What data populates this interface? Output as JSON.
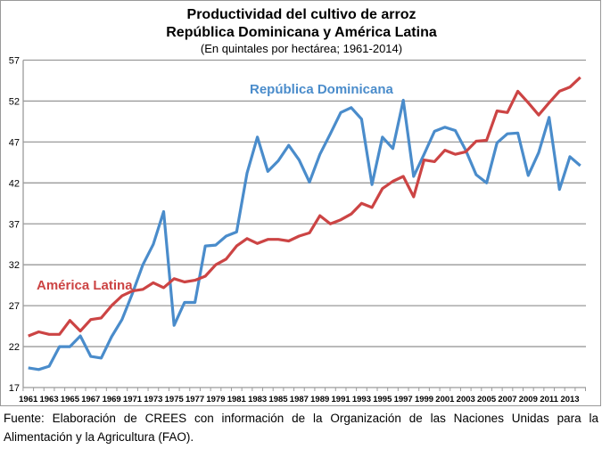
{
  "chart_data": {
    "type": "line",
    "title": "Productividad del cultivo de arroz",
    "title_line2": "República Dominicana y América Latina",
    "subtitle": "(En quintales por hectárea; 1961-2014)",
    "ylim": [
      17,
      57
    ],
    "yticks": [
      17,
      22,
      27,
      32,
      37,
      42,
      47,
      52,
      57
    ],
    "grid": true,
    "x": [
      1961,
      1962,
      1963,
      1964,
      1965,
      1966,
      1967,
      1968,
      1969,
      1970,
      1971,
      1972,
      1973,
      1974,
      1975,
      1976,
      1977,
      1978,
      1979,
      1980,
      1981,
      1982,
      1983,
      1984,
      1985,
      1986,
      1987,
      1988,
      1989,
      1990,
      1991,
      1992,
      1993,
      1994,
      1995,
      1996,
      1997,
      1998,
      1999,
      2000,
      2001,
      2002,
      2003,
      2004,
      2005,
      2006,
      2007,
      2008,
      2009,
      2010,
      2011,
      2012,
      2013,
      2014
    ],
    "xtick_labels": [
      "1961",
      "1963",
      "1965",
      "1967",
      "1969",
      "1971",
      "1973",
      "1975",
      "1977",
      "1979",
      "1981",
      "1983",
      "1985",
      "1987",
      "1989",
      "1991",
      "1993",
      "1995",
      "1997",
      "1999",
      "2001",
      "2003",
      "2005",
      "2007",
      "2009",
      "2011",
      "2013"
    ],
    "series": [
      {
        "name": "República Dominicana",
        "color": "#4a8ccb",
        "values": [
          19.4,
          19.2,
          19.6,
          22.0,
          22.0,
          23.3,
          20.8,
          20.6,
          23.2,
          25.3,
          28.5,
          32.0,
          34.5,
          38.5,
          24.6,
          27.4,
          27.4,
          34.3,
          34.4,
          35.5,
          36.0,
          43.2,
          47.6,
          43.4,
          44.7,
          46.6,
          44.8,
          42.1,
          45.5,
          48.0,
          50.6,
          51.2,
          49.8,
          41.8,
          47.6,
          46.2,
          52.1,
          42.8,
          45.5,
          48.3,
          48.8,
          48.4,
          46.0,
          43.0,
          42.0,
          46.9,
          48.0,
          48.1,
          42.9,
          45.7,
          50.0,
          41.2,
          45.2,
          44.1
        ]
      },
      {
        "name": "América Latina",
        "color": "#cc4444",
        "values": [
          23.3,
          23.8,
          23.5,
          23.5,
          25.2,
          23.9,
          25.3,
          25.5,
          27.0,
          28.2,
          28.8,
          29.0,
          29.8,
          29.2,
          30.3,
          29.9,
          30.1,
          30.6,
          32.0,
          32.7,
          34.3,
          35.2,
          34.6,
          35.1,
          35.1,
          34.9,
          35.5,
          35.9,
          38.0,
          37.0,
          37.5,
          38.2,
          39.5,
          39.0,
          41.3,
          42.2,
          42.8,
          40.3,
          44.8,
          44.6,
          46.0,
          45.5,
          45.8,
          47.1,
          47.2,
          50.8,
          50.6,
          53.2,
          51.8,
          50.3,
          51.8,
          53.2,
          53.7,
          54.9
        ]
      }
    ]
  },
  "footer": "Fuente: Elaboración de CREES con información de la Organización de las Naciones Unidas para la Alimentación y la Agricultura (FAO)."
}
